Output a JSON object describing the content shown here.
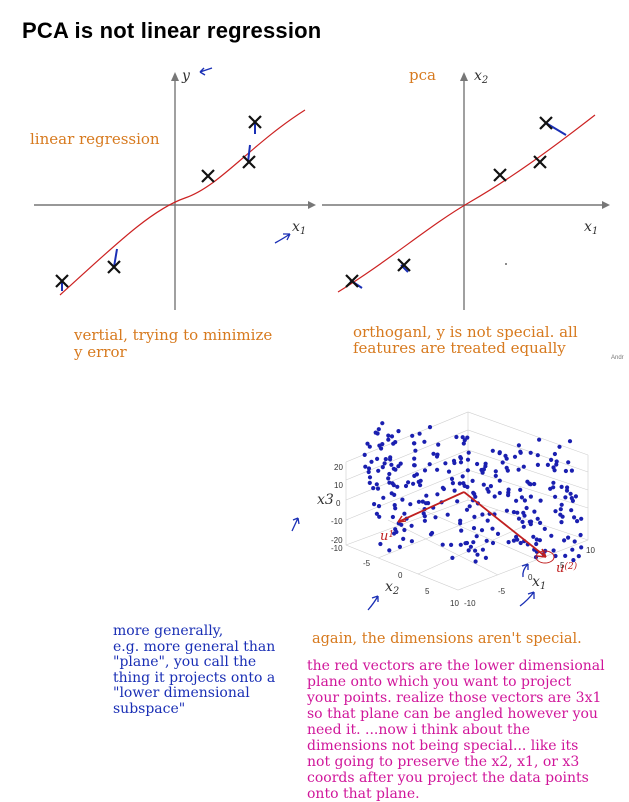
{
  "slide": {
    "title": "PCA is not linear regression",
    "credit": "Andr"
  },
  "left_plot": {
    "label": "linear regression",
    "x_axis": "x",
    "x_axis_sub": "1",
    "y_axis": "y",
    "caption_line1": "vertial, trying to minimize",
    "caption_line2": "y error"
  },
  "right_plot": {
    "label": "pca",
    "x_axis": "x",
    "x_axis_sub": "1",
    "y_axis": "x",
    "y_axis_sub": "2",
    "caption_line1": "orthoganl, y is not special. all",
    "caption_line2": "features are treated equally"
  },
  "plot3d": {
    "z_label": "x3",
    "x_label": "x",
    "x_label_sub": "1",
    "y_label": "x",
    "y_label_sub": "2",
    "z_ticks": [
      "20",
      "10",
      "0",
      "-10",
      "-20"
    ],
    "z_low": "-10",
    "y_ticks": [
      "-5",
      "0",
      "5",
      "10"
    ],
    "y_low": "-10",
    "x_ticks": [
      "10",
      "5",
      "0",
      "-5"
    ],
    "u1": "u",
    "u1_sub": "1",
    "u2": "u",
    "u2_sub": "(2)",
    "colors": {
      "points": "#1a1fb0",
      "vectors": "#c02020"
    }
  },
  "notes": {
    "blue_text": [
      "more generally,",
      "e.g. more general than",
      "\"plane\", you call the",
      "thing it projects onto a",
      "\"lower dimensional",
      "subspace\""
    ],
    "orange_text": "again, the dimensions aren't special.",
    "magenta_text": [
      "the red vectors are the lower dimensional",
      "plane onto which you want to project",
      "your points. realize those vectors are 3x1",
      "so that plane can be angled however you",
      "need it. ...now i think about the",
      "dimensions not being special... like its",
      "not going to preserve the x2, x1, or x3",
      "coords after you project the data points",
      "onto that plane."
    ]
  }
}
